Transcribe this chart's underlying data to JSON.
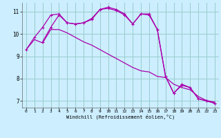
{
  "xlabel": "Windchill (Refroidissement éolien,°C)",
  "background_color": "#cceeff",
  "line_color": "#aa00aa",
  "grid_color": "#99cccc",
  "xlim": [
    -0.5,
    23.5
  ],
  "ylim": [
    6.7,
    11.4
  ],
  "yticks": [
    7,
    8,
    9,
    10,
    11
  ],
  "xticks": [
    0,
    1,
    2,
    3,
    4,
    5,
    6,
    7,
    8,
    9,
    10,
    11,
    12,
    13,
    14,
    15,
    16,
    17,
    18,
    19,
    20,
    21,
    22,
    23
  ],
  "line1_x": [
    0,
    1,
    2,
    3,
    4,
    5,
    6,
    7,
    8,
    9,
    10,
    11,
    12,
    13,
    14,
    15,
    16,
    17,
    18,
    19,
    20,
    21,
    22,
    23
  ],
  "line1_y": [
    9.3,
    9.85,
    10.3,
    10.85,
    10.9,
    10.5,
    10.45,
    10.5,
    10.7,
    11.1,
    11.2,
    11.1,
    10.9,
    10.45,
    10.9,
    10.9,
    10.2,
    8.1,
    7.35,
    7.7,
    7.6,
    7.1,
    7.0,
    6.9
  ],
  "line2_x": [
    0,
    1,
    2,
    3,
    4,
    5,
    6,
    7,
    8,
    9,
    10,
    11,
    12,
    13,
    14,
    15,
    16,
    17,
    18,
    19,
    20,
    21,
    22,
    23
  ],
  "line2_y": [
    9.3,
    9.75,
    9.6,
    10.2,
    10.2,
    10.05,
    9.85,
    9.65,
    9.5,
    9.3,
    9.1,
    8.9,
    8.7,
    8.5,
    8.35,
    8.3,
    8.1,
    8.05,
    7.75,
    7.6,
    7.5,
    7.2,
    7.02,
    6.95
  ],
  "line3_x": [
    2,
    3,
    4,
    5,
    6,
    7,
    8,
    9,
    10,
    11,
    12,
    13,
    14,
    15,
    16,
    17,
    18,
    19,
    20,
    21,
    22,
    23
  ],
  "line3_y": [
    9.65,
    10.3,
    10.85,
    10.5,
    10.45,
    10.5,
    10.65,
    11.1,
    11.15,
    11.05,
    10.85,
    10.45,
    10.9,
    10.85,
    10.2,
    8.1,
    7.35,
    7.75,
    7.6,
    7.1,
    7.0,
    6.9
  ]
}
